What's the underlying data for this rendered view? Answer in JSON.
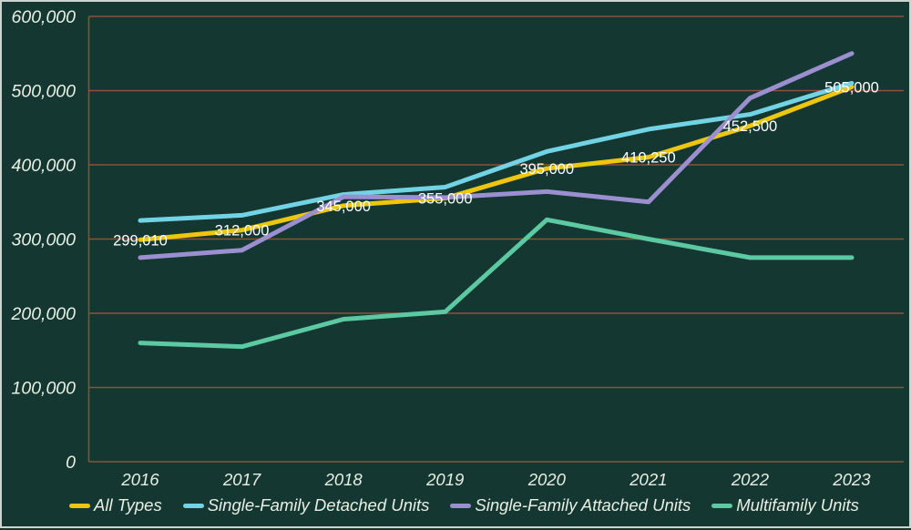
{
  "chart_data": {
    "type": "line",
    "x": [
      "2016",
      "2017",
      "2018",
      "2019",
      "2020",
      "2021",
      "2022",
      "2023"
    ],
    "series": [
      {
        "name": "All Types",
        "color": "#edc60f",
        "values": [
          299010,
          312000,
          345000,
          355000,
          395000,
          410250,
          452500,
          505000
        ],
        "point_labels": [
          "299,010",
          "312,000",
          "345,000",
          "355,000",
          "395,000",
          "410,250",
          "452,500",
          "505,000"
        ]
      },
      {
        "name": "Single-Family Detached Units",
        "color": "#72d3e4",
        "values": [
          325000,
          332000,
          360000,
          370000,
          418000,
          448000,
          468000,
          510000
        ]
      },
      {
        "name": "Single-Family Attached Units",
        "color": "#9c8fd0",
        "values": [
          275000,
          285000,
          357000,
          356000,
          364000,
          350000,
          490000,
          550000
        ]
      },
      {
        "name": "Multifamily Units",
        "color": "#5cc9a3",
        "values": [
          160000,
          155000,
          192000,
          202000,
          326000,
          300000,
          275000,
          275000
        ]
      }
    ],
    "ylim": [
      0,
      600000
    ],
    "y_tick_values": [
      600000,
      500000,
      400000,
      300000,
      200000,
      100000,
      0
    ],
    "y_tick_labels": [
      "600,000",
      "500,000",
      "400,000",
      "300,000",
      "200,000",
      "100,000",
      "0"
    ],
    "grid": "horizontal",
    "legend_position": "bottom",
    "draw_order": [
      "Multifamily Units",
      "All Types",
      "Single-Family Detached Units",
      "Single-Family Attached Units"
    ]
  },
  "colors": {
    "background": "#143831",
    "gridline": "#8f4f3a",
    "axis_line": "#8f4f3a",
    "axis_text": "#e9efe4",
    "data_label": "#ffffff",
    "page_border": "#ccd4cf"
  }
}
